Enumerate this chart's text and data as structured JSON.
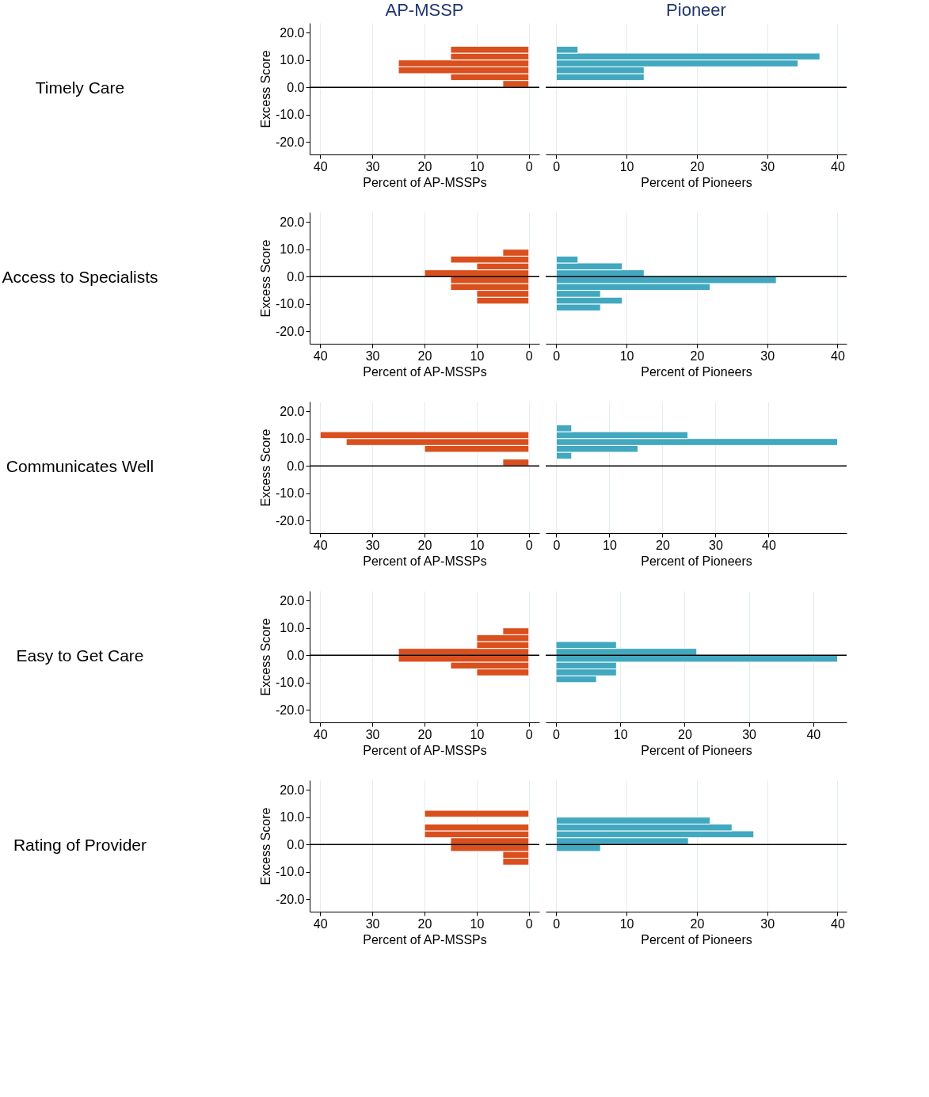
{
  "chart_data": [
    {
      "type": "histogram",
      "orientation": "horizontal",
      "title": "AP-MSSP",
      "annotations": [
        "Timely Care"
      ],
      "ylabel": "Excess Score",
      "xlabel": "Percent of AP-MSSPs",
      "color": "#d9501e",
      "bins": [
        0,
        2.5,
        5,
        7.5,
        10,
        12.5,
        15
      ],
      "values": [
        5,
        15,
        25,
        25,
        15,
        15
      ],
      "xlim": [
        42,
        -2
      ],
      "xticks": [
        40,
        30,
        20,
        10,
        0
      ],
      "ylim": [
        -24.5,
        23.5
      ],
      "yticks": [
        {
          "value": -20,
          "label": "-20.0"
        },
        {
          "value": -10,
          "label": "-10.0"
        },
        {
          "value": 0,
          "label": "0.0"
        },
        {
          "value": 10,
          "label": "10.0"
        },
        {
          "value": 20,
          "label": "20.0"
        }
      ],
      "ref_lines": [
        {
          "axis": "y",
          "value": 0,
          "color": "#000000"
        }
      ],
      "grid": "x"
    },
    {
      "type": "histogram",
      "orientation": "horizontal",
      "title": "Pioneer",
      "xlabel": "Percent of Pioneers",
      "color": "#42a8c0",
      "bins": [
        2.5,
        5,
        7.5,
        10,
        12.5,
        15
      ],
      "values": [
        12.5,
        12.5,
        34.4,
        37.5,
        3.1
      ],
      "xlim": [
        -1.5,
        41.3
      ],
      "xticks": [
        0,
        10,
        20,
        30,
        40
      ],
      "ylim": [
        -24.5,
        23.5
      ],
      "tick_labels": "x",
      "ref_lines": [
        {
          "axis": "y",
          "value": 0,
          "color": "#000000"
        }
      ],
      "grid": "x"
    },
    {
      "type": "histogram",
      "orientation": "horizontal",
      "annotations": [
        "Access to Specialists"
      ],
      "ylabel": "Excess Score",
      "xlabel": "Percent of AP-MSSPs",
      "color": "#d9501e",
      "bins": [
        -10,
        -7.5,
        -5,
        -2.5,
        0,
        2.5,
        5,
        7.5,
        10
      ],
      "values": [
        10,
        10,
        15,
        15,
        20,
        10,
        15,
        5
      ],
      "xlim": [
        42,
        -2
      ],
      "xticks": [
        40,
        30,
        20,
        10,
        0
      ],
      "ylim": [
        -24.5,
        23.5
      ],
      "yticks": [
        {
          "value": -20,
          "label": "-20.0"
        },
        {
          "value": -10,
          "label": "-10.0"
        },
        {
          "value": 0,
          "label": "0.0"
        },
        {
          "value": 10,
          "label": "10.0"
        },
        {
          "value": 20,
          "label": "20.0"
        }
      ],
      "ref_lines": [
        {
          "axis": "y",
          "value": 0,
          "color": "#000000"
        }
      ],
      "grid": "x"
    },
    {
      "type": "histogram",
      "orientation": "horizontal",
      "xlabel": "Percent of Pioneers",
      "color": "#42a8c0",
      "bins": [
        -12.5,
        -10,
        -7.5,
        -5,
        -2.5,
        0,
        2.5,
        5,
        7.5
      ],
      "values": [
        6.3,
        9.4,
        6.3,
        21.9,
        31.3,
        12.5,
        9.4,
        3.1
      ],
      "xlim": [
        -1.5,
        41.3
      ],
      "xticks": [
        0,
        10,
        20,
        30,
        40
      ],
      "ylim": [
        -24.5,
        23.5
      ],
      "tick_labels": "x",
      "ref_lines": [
        {
          "axis": "y",
          "value": 0,
          "color": "#000000"
        }
      ],
      "grid": "x"
    },
    {
      "type": "histogram",
      "orientation": "horizontal",
      "annotations": [
        "Communicates Well"
      ],
      "ylabel": "Excess Score",
      "xlabel": "Percent of AP-MSSPs",
      "color": "#d9501e",
      "bins": [
        0,
        2.5,
        5,
        7.5,
        10,
        12.5
      ],
      "values": [
        5,
        0,
        20,
        35,
        40
      ],
      "xlim": [
        42,
        -2
      ],
      "xticks": [
        40,
        30,
        20,
        10,
        0
      ],
      "ylim": [
        -24.5,
        23.5
      ],
      "yticks": [
        {
          "value": -20,
          "label": "-20.0"
        },
        {
          "value": -10,
          "label": "-10.0"
        },
        {
          "value": 0,
          "label": "0.0"
        },
        {
          "value": 10,
          "label": "10.0"
        },
        {
          "value": 20,
          "label": "20.0"
        }
      ],
      "ref_lines": [
        {
          "axis": "y",
          "value": 0,
          "color": "#000000"
        }
      ],
      "grid": "x"
    },
    {
      "type": "histogram",
      "orientation": "horizontal",
      "xlabel": "Percent of Pioneers",
      "color": "#42a8c0",
      "bins": [
        2.5,
        5,
        7.5,
        10,
        12.5,
        15
      ],
      "values": [
        2.9,
        15.4,
        53.0,
        24.8,
        2.9
      ],
      "xlim": [
        -2,
        54.7
      ],
      "xticks": [
        0,
        10,
        20,
        30,
        40
      ],
      "ylim": [
        -24.5,
        23.5
      ],
      "tick_labels": "x",
      "ref_lines": [
        {
          "axis": "y",
          "value": 0,
          "color": "#000000"
        }
      ],
      "grid": "x"
    },
    {
      "type": "histogram",
      "orientation": "horizontal",
      "annotations": [
        "Easy to Get Care"
      ],
      "ylabel": "Excess Score",
      "xlabel": "Percent of AP-MSSPs",
      "color": "#d9501e",
      "bins": [
        -7.5,
        -5,
        -2.5,
        0,
        2.5,
        5,
        7.5,
        10
      ],
      "values": [
        10,
        15,
        25,
        25,
        10,
        10,
        5
      ],
      "xlim": [
        42,
        -2
      ],
      "xticks": [
        40,
        30,
        20,
        10,
        0
      ],
      "ylim": [
        -24.5,
        23.5
      ],
      "yticks": [
        {
          "value": -20,
          "label": "-20.0"
        },
        {
          "value": -10,
          "label": "-10.0"
        },
        {
          "value": 0,
          "label": "0.0"
        },
        {
          "value": 10,
          "label": "10.0"
        },
        {
          "value": 20,
          "label": "20.0"
        }
      ],
      "ref_lines": [
        {
          "axis": "y",
          "value": 0,
          "color": "#000000"
        }
      ],
      "grid": "x"
    },
    {
      "type": "histogram",
      "orientation": "horizontal",
      "xlabel": "Percent of Pioneers",
      "color": "#42a8c0",
      "bins": [
        -10,
        -7.5,
        -5,
        -2.5,
        0,
        2.5,
        5
      ],
      "values": [
        6.3,
        9.4,
        9.4,
        43.8,
        21.9,
        9.4
      ],
      "xlim": [
        -1.6,
        45.2
      ],
      "xticks": [
        0,
        10,
        20,
        30,
        40
      ],
      "ylim": [
        -24.5,
        23.5
      ],
      "tick_labels": "x",
      "ref_lines": [
        {
          "axis": "y",
          "value": 0,
          "color": "#000000"
        }
      ],
      "grid": "x"
    },
    {
      "type": "histogram",
      "orientation": "horizontal",
      "annotations": [
        "Rating of Provider"
      ],
      "ylabel": "Excess Score",
      "xlabel": "Percent of AP-MSSPs",
      "color": "#d9501e",
      "bins": [
        -7.5,
        -5,
        -2.5,
        0,
        2.5,
        5,
        7.5,
        10,
        12.5
      ],
      "values": [
        5,
        5,
        15,
        15,
        20,
        20,
        0,
        20
      ],
      "xlim": [
        42,
        -2
      ],
      "xticks": [
        40,
        30,
        20,
        10,
        0
      ],
      "ylim": [
        -24.5,
        23.5
      ],
      "yticks": [
        {
          "value": -20,
          "label": "-20.0"
        },
        {
          "value": -10,
          "label": "-10.0"
        },
        {
          "value": 0,
          "label": "0.0"
        },
        {
          "value": 10,
          "label": "10.0"
        },
        {
          "value": 20,
          "label": "20.0"
        }
      ],
      "ref_lines": [
        {
          "axis": "y",
          "value": 0,
          "color": "#000000"
        }
      ],
      "grid": "x"
    },
    {
      "type": "histogram",
      "orientation": "horizontal",
      "xlabel": "Percent of Pioneers",
      "color": "#42a8c0",
      "bins": [
        -2.5,
        0,
        2.5,
        5,
        7.5,
        10
      ],
      "values": [
        6.3,
        18.8,
        28.1,
        25,
        21.9
      ],
      "xlim": [
        -1.5,
        41.3
      ],
      "xticks": [
        0,
        10,
        20,
        30,
        40
      ],
      "ylim": [
        -24.5,
        23.5
      ],
      "tick_labels": "x",
      "ref_lines": [
        {
          "axis": "y",
          "value": 0,
          "color": "#000000"
        }
      ],
      "grid": "x"
    }
  ]
}
